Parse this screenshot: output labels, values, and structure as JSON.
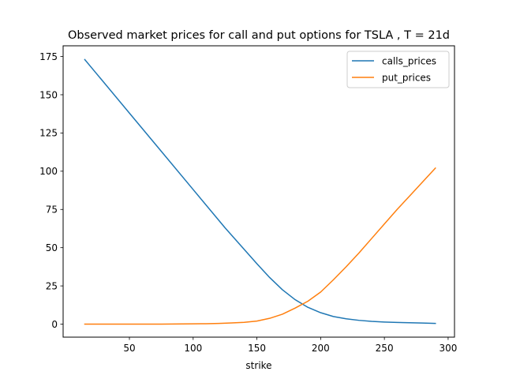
{
  "chart_data": {
    "type": "line",
    "title": "Observed market prices for call and put options for TSLA , T = 21d",
    "xlabel": "strike",
    "ylabel": "",
    "xlim": [
      -2,
      305
    ],
    "ylim": [
      -8.5,
      182
    ],
    "xticks": [
      50,
      100,
      150,
      200,
      250,
      300
    ],
    "yticks": [
      0,
      25,
      50,
      75,
      100,
      125,
      150,
      175
    ],
    "grid": false,
    "legend_position": "top-right",
    "series": [
      {
        "name": "calls_prices",
        "color": "#1f77b4",
        "x": [
          15,
          25,
          50,
          75,
          100,
          125,
          150,
          160,
          170,
          180,
          190,
          200,
          210,
          220,
          230,
          240,
          250,
          260,
          270,
          280,
          290
        ],
        "y": [
          173,
          163,
          138,
          113,
          88,
          63,
          39.5,
          30.5,
          22.5,
          16,
          11,
          7.5,
          5,
          3.5,
          2.5,
          1.8,
          1.4,
          1.1,
          0.9,
          0.7,
          0.5
        ]
      },
      {
        "name": "put_prices",
        "color": "#ff7f0e",
        "x": [
          15,
          50,
          75,
          100,
          110,
          120,
          130,
          140,
          150,
          160,
          170,
          180,
          190,
          200,
          210,
          220,
          230,
          240,
          250,
          260,
          270,
          280,
          290
        ],
        "y": [
          0,
          0,
          0.05,
          0.2,
          0.3,
          0.5,
          0.8,
          1.2,
          2,
          3.8,
          6.5,
          10.5,
          15,
          21,
          29,
          37.5,
          46.5,
          56,
          65.5,
          75,
          84,
          93,
          102
        ]
      }
    ]
  }
}
